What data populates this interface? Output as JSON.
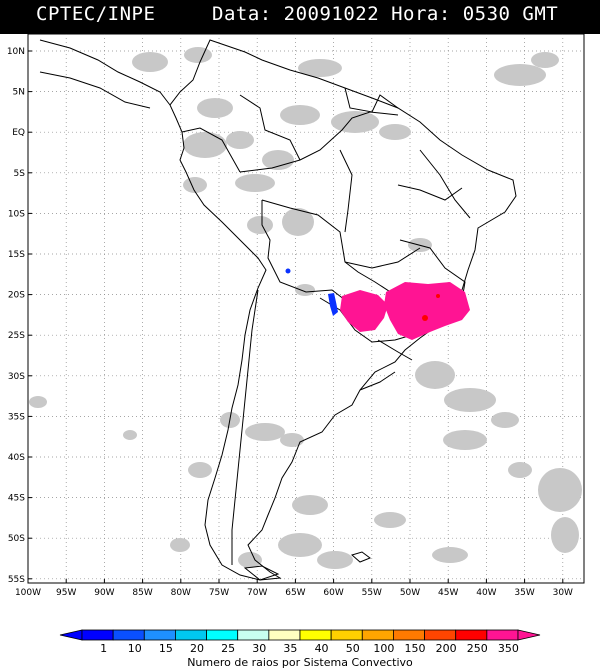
{
  "header": {
    "org": "CPTEC/INPE",
    "stamp": "Data: 20091022 Hora: 0530 GMT"
  },
  "map": {
    "lat_labels": [
      "10N",
      "5N",
      "EQ",
      "5S",
      "10S",
      "15S",
      "20S",
      "25S",
      "30S",
      "35S",
      "40S",
      "45S",
      "50S",
      "55S"
    ],
    "lon_labels": [
      "100W",
      "95W",
      "90W",
      "85W",
      "80W",
      "75W",
      "70W",
      "65W",
      "60W",
      "55W",
      "50W",
      "45W",
      "40W",
      "35W",
      "30W"
    ],
    "cloud_color": "#c8c8c8",
    "border_color": "#000000",
    "grid_style": "dotted"
  },
  "scale": {
    "title": "Numero de raios por Sistema Convectivo",
    "labels": [
      "1",
      "10",
      "15",
      "20",
      "25",
      "30",
      "35",
      "40",
      "50",
      "100",
      "150",
      "200",
      "250",
      "350"
    ],
    "colors": [
      "#0000ff",
      "#0a50ff",
      "#1e90ff",
      "#00c8f0",
      "#00ffff",
      "#c8fff0",
      "#ffffc0",
      "#ffff00",
      "#ffd000",
      "#ffa500",
      "#ff7a00",
      "#ff4500",
      "#ff0000",
      "#ff1493"
    ]
  }
}
